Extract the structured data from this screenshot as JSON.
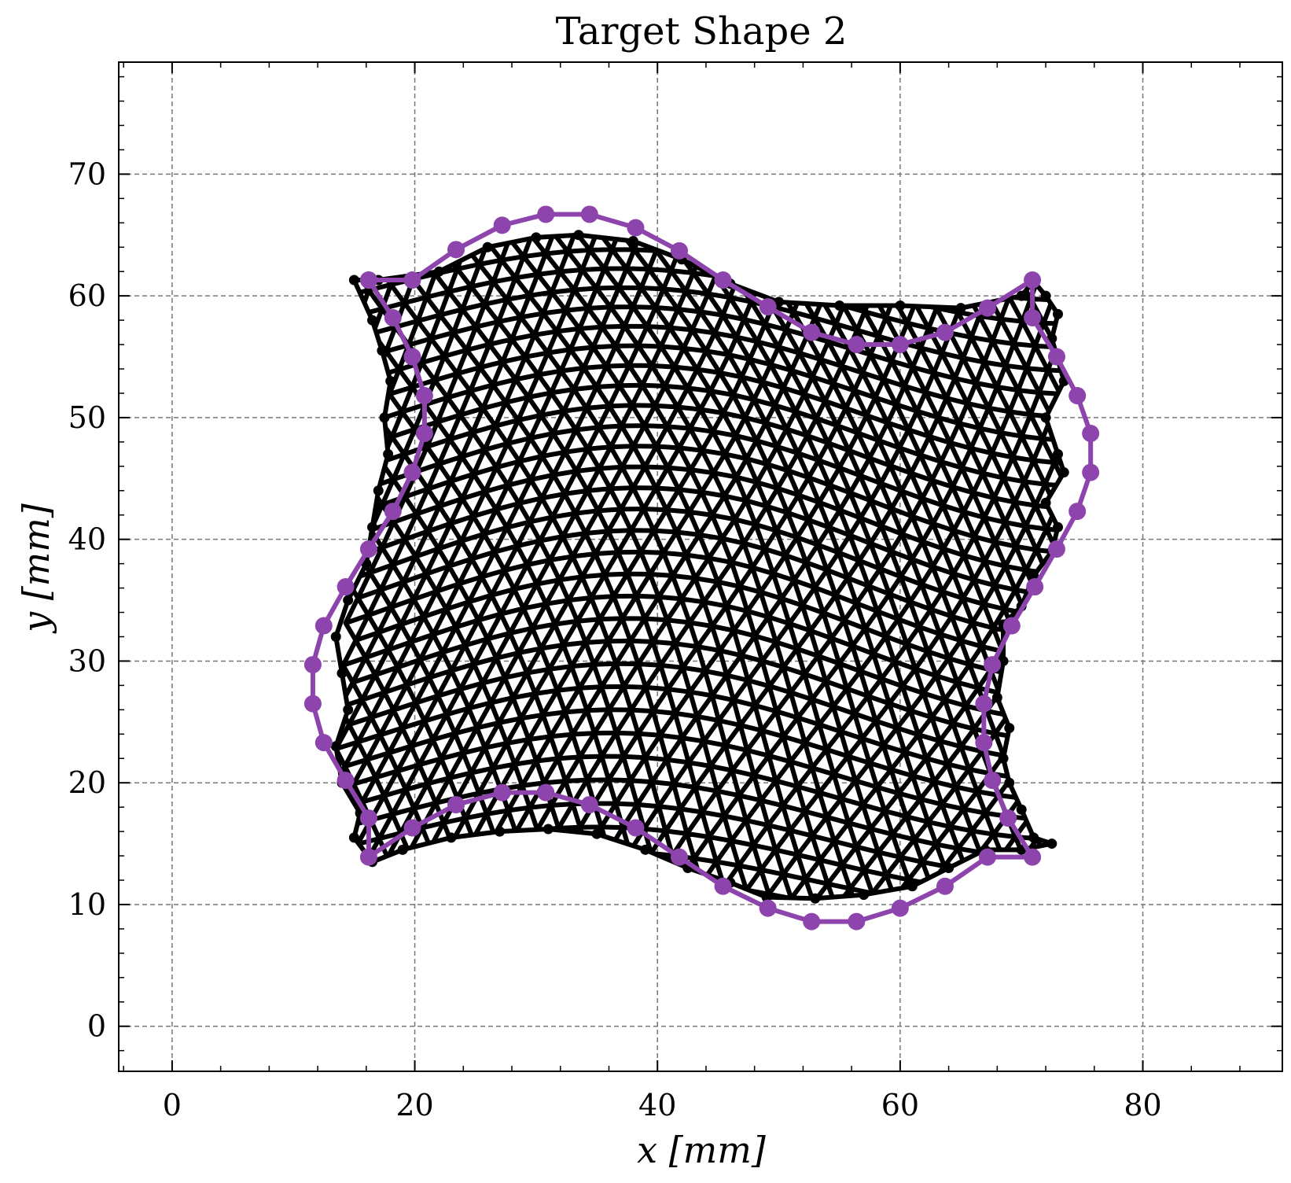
{
  "chart_data": {
    "type": "line",
    "title": "Target Shape 2",
    "xlabel": "x [mm]",
    "ylabel": "y [mm]",
    "xlim": [
      -4.4,
      91.5
    ],
    "ylim": [
      -3.7,
      79.2
    ],
    "xticks": [
      0,
      20,
      40,
      60,
      80
    ],
    "yticks": [
      0,
      10,
      20,
      30,
      40,
      50,
      60,
      70
    ],
    "grid": true,
    "mesh_color": "#000000",
    "target_color": "#8e44ad",
    "mesh_outline": [
      [
        15,
        61.3
      ],
      [
        17,
        61.3
      ],
      [
        22,
        62
      ],
      [
        26,
        64
      ],
      [
        30,
        64.8
      ],
      [
        33.5,
        65
      ],
      [
        38,
        64.5
      ],
      [
        42,
        63
      ],
      [
        46,
        61
      ],
      [
        50,
        59.5
      ],
      [
        55,
        59.2
      ],
      [
        60,
        59.2
      ],
      [
        65,
        59
      ],
      [
        70,
        60
      ],
      [
        71,
        61.2
      ],
      [
        72,
        60
      ],
      [
        73,
        58.5
      ],
      [
        72.5,
        56.5
      ],
      [
        73.5,
        53
      ],
      [
        72,
        50
      ],
      [
        73,
        47
      ],
      [
        73.5,
        45.5
      ],
      [
        72,
        43
      ],
      [
        73,
        41
      ],
      [
        72.5,
        39
      ],
      [
        71,
        37
      ],
      [
        70,
        34.5
      ],
      [
        68.5,
        33
      ],
      [
        68.5,
        30
      ],
      [
        68,
        27
      ],
      [
        69,
        24.5
      ],
      [
        68.5,
        22
      ],
      [
        69,
        20
      ],
      [
        70,
        17.8
      ],
      [
        71,
        15.5
      ],
      [
        72.5,
        15
      ],
      [
        70,
        14.5
      ],
      [
        67,
        14.5
      ],
      [
        64,
        13
      ],
      [
        61,
        11.5
      ],
      [
        57,
        10.8
      ],
      [
        53,
        10.5
      ],
      [
        49,
        10.6
      ],
      [
        46,
        11.8
      ],
      [
        42.5,
        13
      ],
      [
        39,
        14.5
      ],
      [
        35,
        15.8
      ],
      [
        31,
        16.2
      ],
      [
        27,
        16
      ],
      [
        23,
        15.5
      ],
      [
        19,
        14.5
      ],
      [
        16.5,
        13.5
      ],
      [
        15,
        15.5
      ],
      [
        15.5,
        17.5
      ],
      [
        14,
        20
      ],
      [
        13.5,
        23
      ],
      [
        14.5,
        26
      ],
      [
        14,
        29
      ],
      [
        13.5,
        32
      ],
      [
        14.5,
        35
      ],
      [
        16,
        38
      ],
      [
        16.5,
        41
      ],
      [
        17,
        44
      ],
      [
        17.8,
        47
      ],
      [
        17.5,
        50
      ],
      [
        18,
        53
      ],
      [
        17.3,
        55.5
      ],
      [
        16.5,
        58
      ]
    ],
    "target_contour": [
      [
        16.2,
        61.3
      ],
      [
        19.8,
        61.3
      ],
      [
        23.4,
        63.8
      ],
      [
        27.2,
        65.8
      ],
      [
        30.8,
        66.7
      ],
      [
        34.4,
        66.7
      ],
      [
        38.2,
        65.6
      ],
      [
        41.8,
        63.7
      ],
      [
        45.4,
        61.3
      ],
      [
        49.1,
        59.1
      ],
      [
        52.7,
        57
      ],
      [
        56.4,
        56
      ],
      [
        60,
        56
      ],
      [
        63.7,
        57
      ],
      [
        67.2,
        59
      ],
      [
        70.9,
        61.3
      ],
      [
        70.9,
        58.2
      ],
      [
        72.9,
        55
      ],
      [
        74.6,
        51.8
      ],
      [
        75.7,
        48.7
      ],
      [
        75.7,
        45.5
      ],
      [
        74.6,
        42.3
      ],
      [
        72.9,
        39.2
      ],
      [
        71.1,
        36.1
      ],
      [
        69.2,
        32.9
      ],
      [
        67.6,
        29.7
      ],
      [
        66.9,
        26.5
      ],
      [
        66.9,
        23.3
      ],
      [
        67.6,
        20.2
      ],
      [
        68.9,
        17.1
      ],
      [
        70.9,
        13.9
      ],
      [
        67.2,
        13.9
      ],
      [
        63.7,
        11.5
      ],
      [
        60,
        9.7
      ],
      [
        56.4,
        8.6
      ],
      [
        52.7,
        8.6
      ],
      [
        49.1,
        9.7
      ],
      [
        45.4,
        11.5
      ],
      [
        41.8,
        13.9
      ],
      [
        38.2,
        16.3
      ],
      [
        34.4,
        18.2
      ],
      [
        30.8,
        19.2
      ],
      [
        27.2,
        19.2
      ],
      [
        23.4,
        18.2
      ],
      [
        19.8,
        16.3
      ],
      [
        16.2,
        13.9
      ],
      [
        16.2,
        17.1
      ],
      [
        14.3,
        20.2
      ],
      [
        12.5,
        23.3
      ],
      [
        11.6,
        26.5
      ],
      [
        11.6,
        29.7
      ],
      [
        12.5,
        32.9
      ],
      [
        14.3,
        36.1
      ],
      [
        16.2,
        39.2
      ],
      [
        18.2,
        42.3
      ],
      [
        19.8,
        45.5
      ],
      [
        20.8,
        48.7
      ],
      [
        20.8,
        51.8
      ],
      [
        19.8,
        55
      ],
      [
        18.2,
        58.2
      ],
      [
        16.2,
        61.3
      ]
    ]
  }
}
